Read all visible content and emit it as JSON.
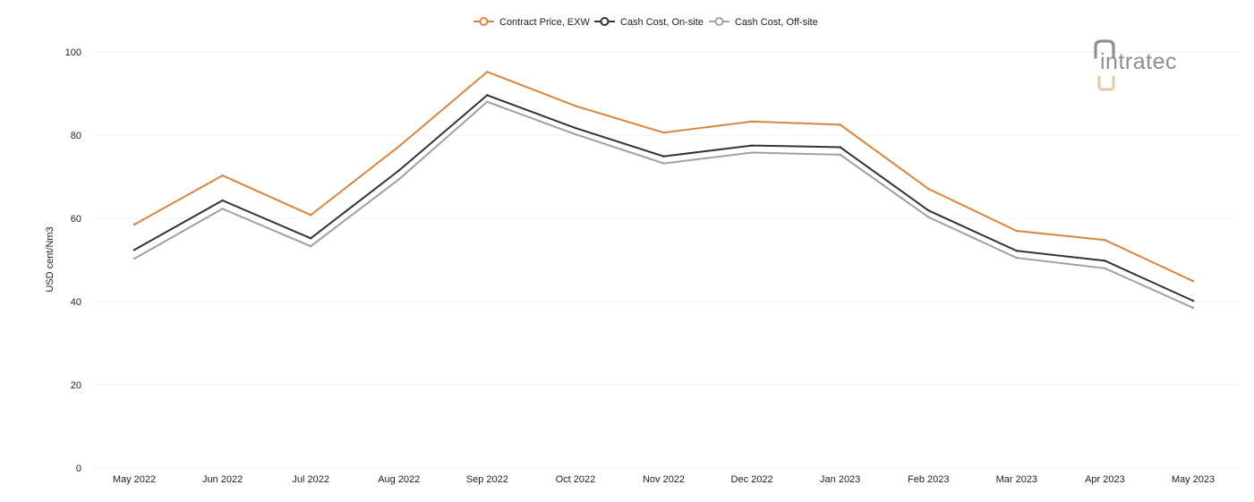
{
  "logo": {
    "text": "intratec"
  },
  "colors": {
    "contract": "#d9843f",
    "onsite": "#333333",
    "offsite": "#a0a0a0",
    "grid": "#f2f2f2",
    "logo_accent": "#e8c9a8"
  },
  "chart_data": {
    "type": "line",
    "title": "",
    "xlabel": "",
    "ylabel": "USD cent/Nm3",
    "ylim": [
      0,
      100
    ],
    "yticks": [
      0,
      20,
      40,
      60,
      80,
      100
    ],
    "grid": true,
    "legend_position": "top-center",
    "categories": [
      "May 2022",
      "Jun 2022",
      "Jul 2022",
      "Aug 2022",
      "Sep 2022",
      "Oct 2022",
      "Nov 2022",
      "Dec 2022",
      "Jan 2023",
      "Feb 2023",
      "Mar 2023",
      "Apr 2023",
      "May 2023"
    ],
    "series": [
      {
        "name": "Contract Price, EXW",
        "color": "#d9843f",
        "values": [
          58.5,
          70.3,
          60.8,
          77.3,
          95.2,
          87.0,
          80.6,
          83.3,
          82.5,
          67.1,
          57.0,
          54.8,
          44.9
        ]
      },
      {
        "name": "Cash Cost, On-site",
        "color": "#333333",
        "values": [
          52.4,
          64.3,
          55.2,
          71.5,
          89.6,
          81.7,
          74.9,
          77.5,
          77.1,
          61.9,
          52.2,
          49.8,
          40.2
        ]
      },
      {
        "name": "Cash Cost, Off-site",
        "color": "#a0a0a0",
        "values": [
          50.3,
          62.3,
          53.3,
          69.4,
          88.0,
          80.2,
          73.2,
          75.8,
          75.3,
          60.3,
          50.5,
          48.0,
          38.5
        ]
      }
    ]
  }
}
